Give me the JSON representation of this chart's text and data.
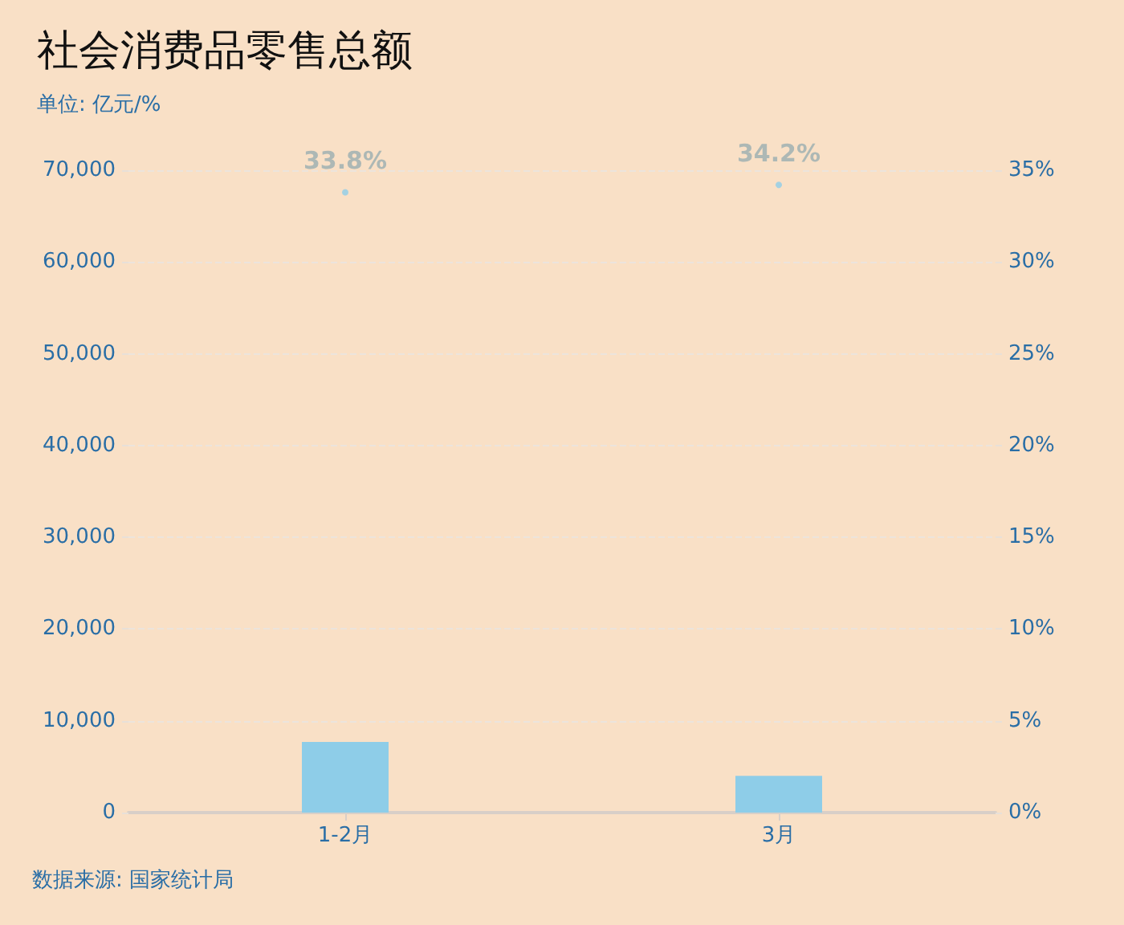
{
  "chart_data": {
    "type": "bar",
    "title": "社会消费品零售总额",
    "subtitle": "单位: 亿元/%",
    "annotations": [
      "数据来源: 国家统计局"
    ],
    "categories": [
      "1-2月",
      "3月"
    ],
    "series": [
      {
        "color": "#8ecde8",
        "values": [
          7700,
          4000
        ]
      },
      {
        "type": "scatter",
        "axis": "y2",
        "color": "#8ecde8",
        "values": [
          33.8,
          34.2
        ],
        "value_labels": [
          "33.8%",
          "34.2%"
        ]
      }
    ],
    "ylim": [
      0,
      70000
    ],
    "yticks": [
      0,
      {
        "value": 10000,
        "label": "10,000"
      },
      {
        "value": 20000,
        "label": "20,000"
      },
      {
        "value": 30000,
        "label": "30,000"
      },
      {
        "value": 40000,
        "label": "40,000"
      },
      {
        "value": 50000,
        "label": "50,000"
      },
      {
        "value": 60000,
        "label": "60,000"
      },
      {
        "value": 70000,
        "label": "70,000"
      }
    ],
    "y2lim": [
      0,
      35
    ],
    "y2ticks": [
      {
        "value": 0,
        "label": "0%"
      },
      {
        "value": 5,
        "label": "5%"
      },
      {
        "value": 10,
        "label": "10%"
      },
      {
        "value": 15,
        "label": "15%"
      },
      {
        "value": 20,
        "label": "20%"
      },
      {
        "value": 25,
        "label": "25%"
      },
      {
        "value": 30,
        "label": "30%"
      },
      {
        "value": 35,
        "label": "35%"
      }
    ],
    "grid": "y",
    "marker": "circle"
  }
}
